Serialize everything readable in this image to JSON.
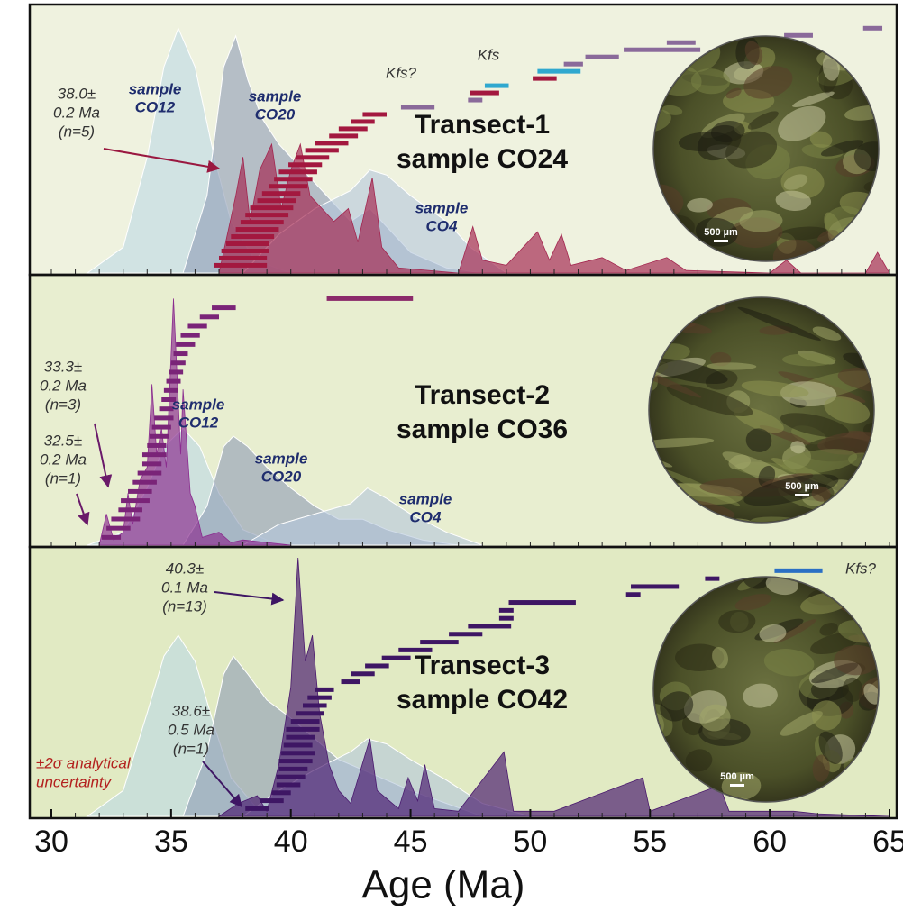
{
  "chart_data": {
    "type": "density-stack",
    "xlim": [
      30,
      65
    ],
    "xticks": [
      30,
      35,
      40,
      45,
      50,
      55,
      60,
      65
    ],
    "xlabel": "Age (Ma)",
    "panels": [
      {
        "title": [
          "Transect-1",
          "sample CO24"
        ],
        "ylim": [
          0,
          1
        ],
        "background": "#eff2df",
        "scale_bar": "500 µm",
        "series": [
          {
            "label": [
              "sample",
              "CO12"
            ],
            "color": "#bcd8e6",
            "x": [
              31.5,
              33,
              34,
              34.7,
              35.3,
              36,
              36.8,
              37.5,
              38.5,
              40
            ],
            "values": [
              0,
              0.1,
              0.45,
              0.8,
              0.95,
              0.8,
              0.45,
              0.2,
              0.05,
              0
            ]
          },
          {
            "label": [
              "sample",
              "CO20"
            ],
            "color": "#8d9bb5",
            "x": [
              35.5,
              36.5,
              37.2,
              37.7,
              38.2,
              38.8,
              39.5,
              40.5,
              41.5,
              42.5,
              43.3,
              44,
              45,
              46.5,
              48
            ],
            "values": [
              0,
              0.3,
              0.8,
              0.92,
              0.75,
              0.6,
              0.5,
              0.4,
              0.3,
              0.2,
              0.25,
              0.18,
              0.08,
              0.02,
              0
            ]
          },
          {
            "label": [
              "sample",
              "CO4"
            ],
            "color": "#b4c7dc",
            "x": [
              38,
              39.5,
              41,
              42.5,
              43.3,
              44,
              45,
              46.5,
              47.5,
              49
            ],
            "values": [
              0,
              0.15,
              0.25,
              0.32,
              0.4,
              0.38,
              0.3,
              0.2,
              0.1,
              0
            ]
          },
          {
            "color": "#a3264f",
            "x": [
              37,
              37.7,
              38,
              38.3,
              38.7,
              39.2,
              39.6,
              40,
              40.4,
              40.8,
              41.3,
              41.8,
              42.4,
              42.8,
              43.4,
              43.8,
              44.5,
              47,
              47.6,
              48,
              49,
              50.3,
              50.8,
              51.3,
              51.7,
              53,
              54,
              55.7,
              56.5,
              60,
              60.7,
              61.3,
              64,
              64.5,
              65
            ],
            "values": [
              0,
              0.3,
              0.45,
              0.2,
              0.4,
              0.5,
              0.25,
              0.4,
              0.5,
              0.3,
              0.25,
              0.2,
              0.25,
              0.12,
              0.37,
              0.1,
              0.02,
              0,
              0.18,
              0.05,
              0.03,
              0.16,
              0.05,
              0.15,
              0.03,
              0.06,
              0.01,
              0.06,
              0.01,
              0,
              0.05,
              0,
              0,
              0.08,
              0
            ]
          }
        ],
        "ages": {
          "values": [
            37.9,
            38.0,
            38.1,
            38.2,
            38.4,
            38.6,
            38.8,
            39.0,
            39.2,
            39.4,
            39.6,
            39.9,
            40.1,
            40.3,
            40.6,
            40.9,
            41.3,
            41.7,
            42.2,
            42.6,
            43.0,
            43.5,
            45.3,
            47.7,
            48.1,
            48.6,
            50.6,
            51.2,
            51.8,
            53.0,
            55.5,
            56.3,
            61.2,
            64.3
          ],
          "errors": [
            1.1,
            1.0,
            1.0,
            0.9,
            0.9,
            0.9,
            0.9,
            0.9,
            0.9,
            0.8,
            0.8,
            0.8,
            0.8,
            0.8,
            0.7,
            0.7,
            0.7,
            0.7,
            0.6,
            0.6,
            0.5,
            0.5,
            0.7,
            0.3,
            0.6,
            0.5,
            0.5,
            0.9,
            0.4,
            0.7,
            1.6,
            0.6,
            0.6,
            0.4
          ],
          "color": "#a3183f",
          "colors": [
            "#a3183f",
            "#a3183f",
            "#a3183f",
            "#a3183f",
            "#a3183f",
            "#a3183f",
            "#a3183f",
            "#a3183f",
            "#a3183f",
            "#a3183f",
            "#a3183f",
            "#a3183f",
            "#a3183f",
            "#a3183f",
            "#a3183f",
            "#a3183f",
            "#a3183f",
            "#a3183f",
            "#a3183f",
            "#a3183f",
            "#a3183f",
            "#a3183f",
            "#8a6a9a",
            "#8a6a9a",
            "#a3183f",
            "#2fa8cf",
            "#a3183f",
            "#2fa8cf",
            "#8a6a9a",
            "#8a6a9a",
            "#8a6a9a",
            "#8a6a9a",
            "#8a6a9a",
            "#8a6a9a"
          ]
        },
        "annotations": [
          {
            "lines": [
              "38.0±",
              "0.2 Ma",
              "(n=5)"
            ],
            "color": "#333333"
          },
          {
            "lines": [
              "Kfs?"
            ],
            "color": "#333333"
          },
          {
            "lines": [
              "Kfs"
            ],
            "color": "#333333"
          }
        ]
      },
      {
        "title": [
          "Transect-2",
          "sample CO36"
        ],
        "ylim": [
          0,
          1
        ],
        "background": "#e8eed0",
        "scale_bar": "500 µm",
        "series": [
          {
            "label": [
              "sample",
              "CO12"
            ],
            "color": "#bcd8e6",
            "x": [
              31.5,
              33,
              34,
              34.7,
              35.5,
              36.2,
              37,
              38,
              39.5
            ],
            "values": [
              0,
              0.05,
              0.22,
              0.38,
              0.45,
              0.38,
              0.2,
              0.06,
              0
            ]
          },
          {
            "label": [
              "sample",
              "CO20"
            ],
            "color": "#8d9bb5",
            "x": [
              35.5,
              36.5,
              37.2,
              37.6,
              38.2,
              39,
              40,
              41,
              42,
              43,
              44,
              45.5,
              47
            ],
            "values": [
              0,
              0.15,
              0.38,
              0.42,
              0.38,
              0.3,
              0.22,
              0.15,
              0.1,
              0.1,
              0.06,
              0.02,
              0
            ]
          },
          {
            "label": [
              "sample",
              "CO4"
            ],
            "color": "#b4c7dc",
            "x": [
              38,
              39.5,
              41,
              42.5,
              43.2,
              44,
              45,
              46.5,
              48
            ],
            "values": [
              0,
              0.08,
              0.12,
              0.16,
              0.22,
              0.18,
              0.12,
              0.05,
              0
            ]
          },
          {
            "color": "#8b2c8f",
            "x": [
              32,
              32.3,
              32.6,
              33,
              33.2,
              33.4,
              33.7,
              34,
              34.2,
              34.4,
              34.6,
              34.8,
              35.1,
              35.4,
              35.5,
              35.8,
              36,
              36.3,
              37,
              37.5,
              38,
              40
            ],
            "values": [
              0,
              0.12,
              0.02,
              0.05,
              0.2,
              0.08,
              0.25,
              0.3,
              0.62,
              0.35,
              0.45,
              0.3,
              0.95,
              0.35,
              0.6,
              0.2,
              0.15,
              0.03,
              0.05,
              0.01,
              0.02,
              0
            ]
          }
        ],
        "ages": {
          "values": [
            32.5,
            32.8,
            33.1,
            33.3,
            33.5,
            33.7,
            33.9,
            34.1,
            34.2,
            34.3,
            34.4,
            34.5,
            34.6,
            34.7,
            34.8,
            34.9,
            35.0,
            35.1,
            35.2,
            35.3,
            35.4,
            35.6,
            35.8,
            36.1,
            36.6,
            37.2,
            43.3
          ],
          "errors": [
            0.4,
            0.5,
            0.6,
            0.5,
            0.6,
            0.5,
            0.5,
            0.5,
            0.4,
            0.5,
            0.4,
            0.4,
            0.4,
            0.4,
            0.3,
            0.3,
            0.3,
            0.3,
            0.3,
            0.3,
            0.3,
            0.4,
            0.4,
            0.4,
            0.4,
            0.5,
            1.8
          ],
          "color": "#7a2478",
          "colors": [
            "#7a2478",
            "#7a2478",
            "#7a2478",
            "#7a2478",
            "#7a2478",
            "#7a2478",
            "#7a2478",
            "#7a2478",
            "#7a2478",
            "#7a2478",
            "#7a2478",
            "#7a2478",
            "#7a2478",
            "#7a2478",
            "#7a2478",
            "#7a2478",
            "#7a2478",
            "#7a2478",
            "#7a2478",
            "#7a2478",
            "#7a2478",
            "#7a2478",
            "#7a2478",
            "#7a2478",
            "#7a2478",
            "#7a2478",
            "#8b2a6a"
          ]
        },
        "annotations": [
          {
            "lines": [
              "33.3±",
              "0.2 Ma",
              "(n=3)"
            ],
            "color": "#333333"
          },
          {
            "lines": [
              "32.5±",
              "0.2 Ma",
              "(n=1)"
            ],
            "color": "#333333"
          }
        ]
      },
      {
        "title": [
          "Transect-3",
          "sample CO42"
        ],
        "ylim": [
          0,
          1
        ],
        "background": "#e1eac3",
        "scale_bar": "500 µm",
        "series": [
          {
            "color": "#bcd8e6",
            "x": [
              31.5,
              33,
              34,
              34.7,
              35.3,
              36,
              36.8,
              37.5,
              38.5,
              40
            ],
            "values": [
              0,
              0.1,
              0.4,
              0.62,
              0.7,
              0.6,
              0.35,
              0.15,
              0.04,
              0
            ]
          },
          {
            "color": "#8d9bb5",
            "x": [
              35.5,
              36.5,
              37.2,
              37.6,
              38.2,
              39,
              40,
              41,
              42,
              43,
              44,
              45,
              46.5,
              48
            ],
            "values": [
              0,
              0.25,
              0.55,
              0.62,
              0.55,
              0.45,
              0.38,
              0.3,
              0.22,
              0.18,
              0.14,
              0.1,
              0.05,
              0
            ]
          },
          {
            "color": "#b4c7dc",
            "x": [
              38,
              39.5,
              41,
              42.5,
              43.2,
              44,
              45,
              46.5,
              48,
              50
            ],
            "values": [
              0,
              0.1,
              0.18,
              0.25,
              0.3,
              0.28,
              0.22,
              0.14,
              0.05,
              0
            ]
          },
          {
            "color": "#4a1a6e",
            "x": [
              37,
              37.8,
              38.6,
              39,
              39.5,
              40,
              40.3,
              40.6,
              40.9,
              41.2,
              41.6,
              42,
              42.5,
              43.3,
              43.6,
              44.5,
              44.9,
              45.3,
              45.6,
              46,
              47,
              48.9,
              49.3,
              51,
              54.7,
              55,
              57.9,
              58.3,
              61,
              62,
              65
            ],
            "values": [
              0,
              0.05,
              0.08,
              0.02,
              0.2,
              0.5,
              1.0,
              0.6,
              0.7,
              0.4,
              0.2,
              0.1,
              0.05,
              0.3,
              0.1,
              0.03,
              0.15,
              0.06,
              0.2,
              0.03,
              0.02,
              0.25,
              0.02,
              0.02,
              0.15,
              0.02,
              0.12,
              0.02,
              0.02,
              0.01,
              0
            ]
          }
        ],
        "ages": {
          "values": [
            38.6,
            39.2,
            39.6,
            39.9,
            40.0,
            40.1,
            40.2,
            40.3,
            40.3,
            40.4,
            40.5,
            40.6,
            40.8,
            41.0,
            41.2,
            41.4,
            42.5,
            43.0,
            43.6,
            44.4,
            45.2,
            46.2,
            47.3,
            48.3,
            49.0,
            49.0,
            50.5,
            54.3,
            55.2,
            57.6,
            61.2
          ],
          "errors": [
            0.5,
            0.5,
            0.4,
            0.5,
            0.6,
            0.6,
            0.7,
            0.7,
            0.6,
            0.6,
            0.7,
            0.6,
            0.6,
            0.5,
            0.5,
            0.4,
            0.4,
            0.5,
            0.5,
            0.6,
            0.7,
            0.8,
            0.7,
            0.9,
            0.3,
            0.3,
            1.4,
            0.3,
            1.0,
            0.3,
            1.0
          ],
          "color": "#3e1664",
          "colors": [
            "#3e1664",
            "#3e1664",
            "#3e1664",
            "#3e1664",
            "#3e1664",
            "#3e1664",
            "#3e1664",
            "#3e1664",
            "#3e1664",
            "#3e1664",
            "#3e1664",
            "#3e1664",
            "#3e1664",
            "#3e1664",
            "#3e1664",
            "#3e1664",
            "#3e1664",
            "#3e1664",
            "#3e1664",
            "#3e1664",
            "#3e1664",
            "#3e1664",
            "#3e1664",
            "#3e1664",
            "#3e1664",
            "#3e1664",
            "#3e1664",
            "#3e1664",
            "#3e1664",
            "#3e1664",
            "#2a6fc4"
          ]
        },
        "annotations": [
          {
            "lines": [
              "40.3±",
              "0.1 Ma",
              "(n=13)"
            ],
            "color": "#333333"
          },
          {
            "lines": [
              "38.6±",
              "0.5 Ma",
              "(n=1)"
            ],
            "color": "#333333"
          },
          {
            "lines": [
              "Kfs?"
            ],
            "color": "#333333"
          },
          {
            "lines": [
              "±2σ analytical",
              "uncertainty"
            ],
            "color": "#b3201e"
          }
        ]
      }
    ]
  }
}
